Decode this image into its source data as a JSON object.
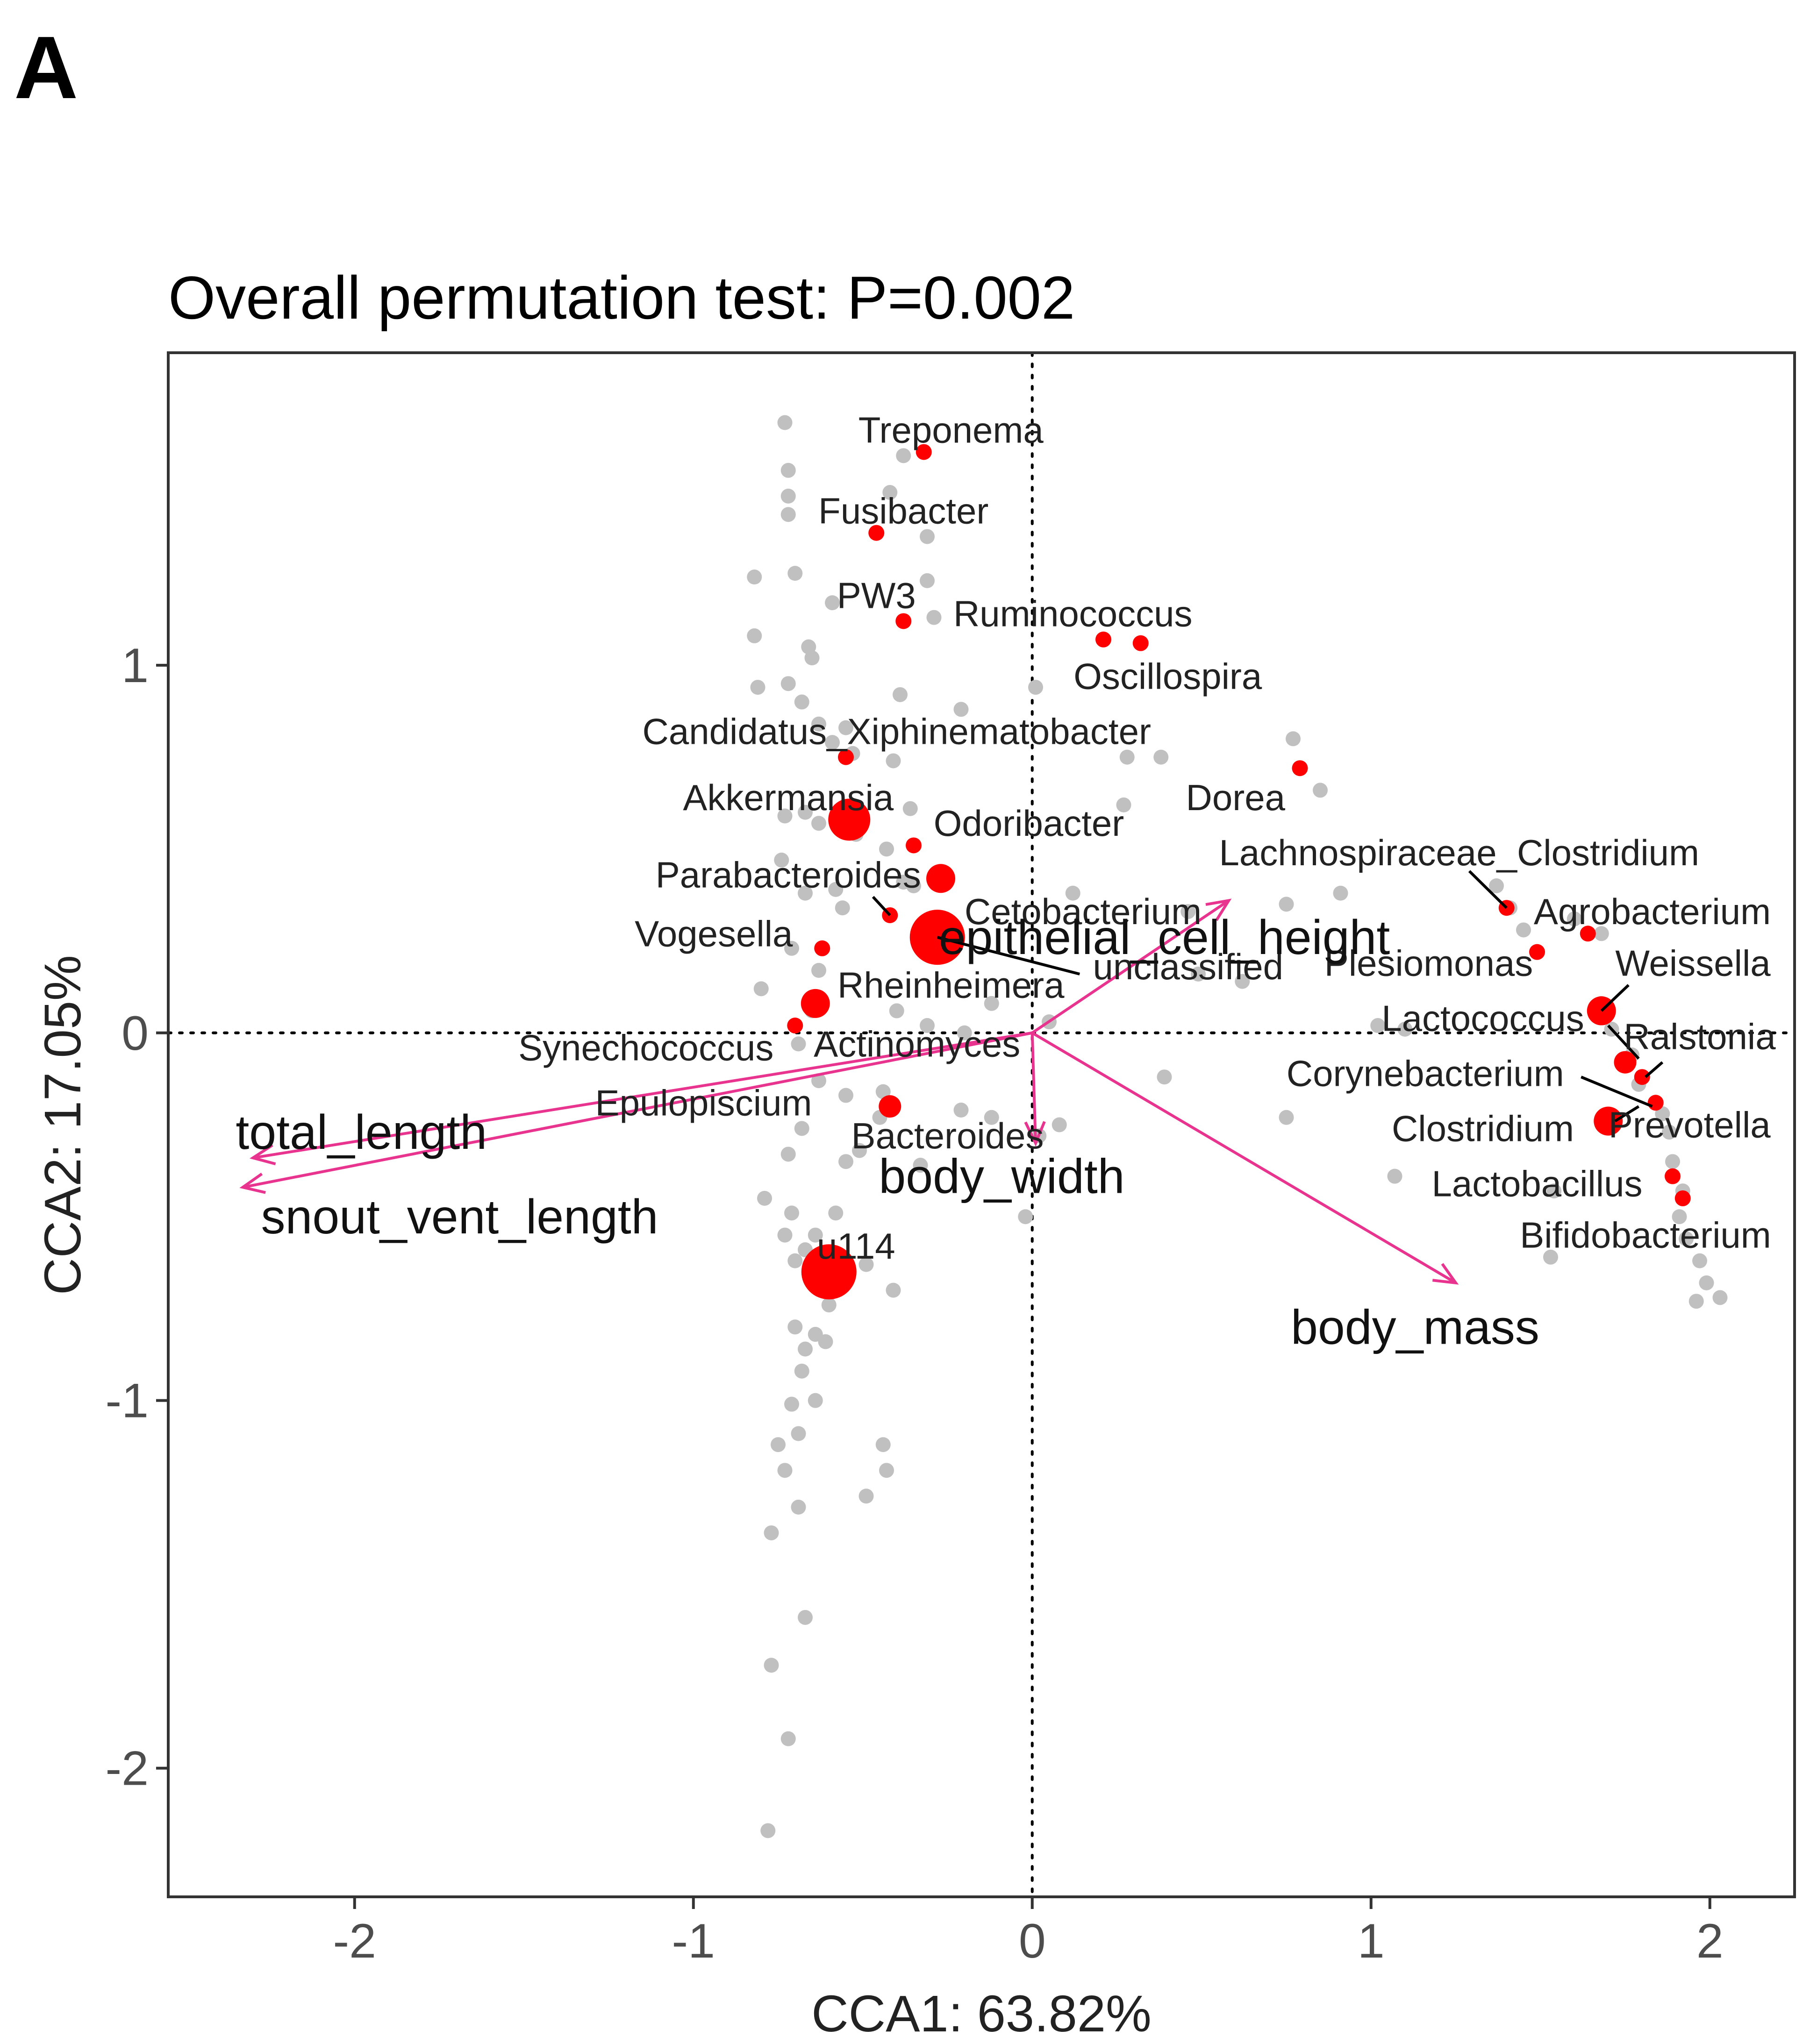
{
  "panel_letter": "A",
  "chart_data": {
    "type": "scatter",
    "title": "Overall permutation test: P=0.002",
    "xlabel": "CCA1: 63.82%",
    "ylabel": "CCA2: 17.05%",
    "xlim": [
      -2.55,
      2.25
    ],
    "ylim": [
      -2.35,
      1.85
    ],
    "xticks": [
      -2,
      -1,
      0,
      1,
      2
    ],
    "yticks": [
      -2,
      -1,
      0,
      1
    ],
    "colors": {
      "background_points": "#c0c0c0",
      "highlight_points": "#ff0000",
      "vectors": "#e8338f",
      "frame": "#333333",
      "reference_lines": "#000000"
    },
    "background_points": [
      [
        -0.73,
        1.66
      ],
      [
        -0.72,
        1.53
      ],
      [
        -0.72,
        1.46
      ],
      [
        -0.72,
        1.41
      ],
      [
        -0.42,
        1.47
      ],
      [
        -0.38,
        1.57
      ],
      [
        -0.31,
        1.35
      ],
      [
        -0.82,
        1.24
      ],
      [
        -0.7,
        1.25
      ],
      [
        -0.31,
        1.23
      ],
      [
        -0.29,
        1.13
      ],
      [
        -0.59,
        1.17
      ],
      [
        -0.82,
        1.08
      ],
      [
        -0.66,
        1.05
      ],
      [
        -0.65,
        1.02
      ],
      [
        -0.81,
        0.94
      ],
      [
        -0.72,
        0.95
      ],
      [
        -0.68,
        0.9
      ],
      [
        -0.39,
        0.92
      ],
      [
        -0.63,
        0.84
      ],
      [
        -0.55,
        0.83
      ],
      [
        -0.21,
        0.88
      ],
      [
        0.01,
        0.94
      ],
      [
        -0.59,
        0.79
      ],
      [
        -0.53,
        0.76
      ],
      [
        -0.41,
        0.74
      ],
      [
        0.28,
        0.75
      ],
      [
        0.38,
        0.75
      ],
      [
        0.77,
        0.8
      ],
      [
        0.85,
        0.66
      ],
      [
        0.27,
        0.62
      ],
      [
        -0.73,
        0.59
      ],
      [
        -0.67,
        0.6
      ],
      [
        -0.63,
        0.57
      ],
      [
        -0.52,
        0.54
      ],
      [
        -0.36,
        0.61
      ],
      [
        -0.43,
        0.5
      ],
      [
        -0.38,
        0.41
      ],
      [
        -0.74,
        0.47
      ],
      [
        -0.58,
        0.39
      ],
      [
        -0.67,
        0.38
      ],
      [
        -0.56,
        0.34
      ],
      [
        -0.35,
        0.4
      ],
      [
        0.12,
        0.38
      ],
      [
        0.46,
        0.33
      ],
      [
        0.75,
        0.35
      ],
      [
        0.91,
        0.38
      ],
      [
        1.37,
        0.4
      ],
      [
        1.41,
        0.34
      ],
      [
        1.45,
        0.28
      ],
      [
        1.6,
        0.31
      ],
      [
        1.68,
        0.27
      ],
      [
        -0.71,
        0.23
      ],
      [
        -0.63,
        0.17
      ],
      [
        -0.8,
        0.12
      ],
      [
        -0.65,
        0.06
      ],
      [
        -0.4,
        0.06
      ],
      [
        -0.31,
        0.02
      ],
      [
        -0.2,
        0.0
      ],
      [
        -0.12,
        0.08
      ],
      [
        0.05,
        0.03
      ],
      [
        0.49,
        0.16
      ],
      [
        0.62,
        0.14
      ],
      [
        1.02,
        0.02
      ],
      [
        1.1,
        0.01
      ],
      [
        1.68,
        0.08
      ],
      [
        1.71,
        0.01
      ],
      [
        1.77,
        -0.06
      ],
      [
        1.79,
        -0.14
      ],
      [
        1.86,
        -0.22
      ],
      [
        1.88,
        -0.27
      ],
      [
        -0.69,
        -0.03
      ],
      [
        -0.63,
        -0.13
      ],
      [
        -0.55,
        -0.17
      ],
      [
        -0.44,
        -0.16
      ],
      [
        -0.45,
        -0.23
      ],
      [
        -0.21,
        -0.21
      ],
      [
        -0.12,
        -0.23
      ],
      [
        -0.68,
        -0.26
      ],
      [
        -0.72,
        -0.33
      ],
      [
        -0.51,
        -0.32
      ],
      [
        -0.55,
        -0.35
      ],
      [
        -0.33,
        -0.36
      ],
      [
        0.02,
        -0.28
      ],
      [
        0.08,
        -0.25
      ],
      [
        0.39,
        -0.12
      ],
      [
        0.75,
        -0.23
      ],
      [
        1.07,
        -0.39
      ],
      [
        1.54,
        -0.43
      ],
      [
        1.89,
        -0.35
      ],
      [
        1.92,
        -0.43
      ],
      [
        1.91,
        -0.5
      ],
      [
        1.93,
        -0.56
      ],
      [
        1.97,
        -0.62
      ],
      [
        1.99,
        -0.68
      ],
      [
        1.96,
        -0.73
      ],
      [
        2.03,
        -0.72
      ],
      [
        1.53,
        -0.61
      ],
      [
        -0.79,
        -0.45
      ],
      [
        -0.71,
        -0.49
      ],
      [
        -0.58,
        -0.49
      ],
      [
        -0.64,
        -0.55
      ],
      [
        -0.73,
        -0.55
      ],
      [
        -0.67,
        -0.59
      ],
      [
        -0.7,
        -0.62
      ],
      [
        -0.49,
        -0.63
      ],
      [
        -0.62,
        -0.68
      ],
      [
        -0.6,
        -0.74
      ],
      [
        -0.41,
        -0.7
      ],
      [
        -0.02,
        -0.5
      ],
      [
        -0.7,
        -0.8
      ],
      [
        -0.67,
        -0.86
      ],
      [
        -0.64,
        -0.82
      ],
      [
        -0.61,
        -0.84
      ],
      [
        -0.68,
        -0.92
      ],
      [
        -0.71,
        -1.01
      ],
      [
        -0.64,
        -1.0
      ],
      [
        -0.69,
        -1.09
      ],
      [
        -0.75,
        -1.12
      ],
      [
        -0.44,
        -1.12
      ],
      [
        -0.43,
        -1.19
      ],
      [
        -0.49,
        -1.26
      ],
      [
        -0.73,
        -1.19
      ],
      [
        -0.69,
        -1.29
      ],
      [
        -0.77,
        -1.36
      ],
      [
        -0.67,
        -1.59
      ],
      [
        -0.77,
        -1.72
      ],
      [
        -0.72,
        -1.92
      ],
      [
        -0.78,
        -2.17
      ]
    ],
    "highlight_points": [
      {
        "label": "Treponema",
        "x": -0.32,
        "y": 1.58,
        "size": 1
      },
      {
        "label": "Fusibacter",
        "x": -0.46,
        "y": 1.36,
        "size": 1
      },
      {
        "label": "PW3",
        "x": -0.38,
        "y": 1.12,
        "size": 1
      },
      {
        "label": "Ruminococcus",
        "x": 0.21,
        "y": 1.07,
        "size": 1
      },
      {
        "label": "Oscillospira",
        "x": 0.32,
        "y": 1.06,
        "size": 1
      },
      {
        "label": "Candidatus_Xiphinematobacter",
        "x": -0.55,
        "y": 0.75,
        "size": 1
      },
      {
        "label": "Dorea",
        "x": 0.79,
        "y": 0.72,
        "size": 1
      },
      {
        "label": "Akkermansia",
        "x": -0.54,
        "y": 0.58,
        "size": 3
      },
      {
        "label": "Odoribacter",
        "x": -0.35,
        "y": 0.51,
        "size": 1
      },
      {
        "label": "Parabacteroides",
        "x": -0.42,
        "y": 0.32,
        "size": 1
      },
      {
        "label": "Cetobacterium",
        "x": -0.27,
        "y": 0.42,
        "size": 2
      },
      {
        "label": "epithelial_cell_height",
        "x": -0.28,
        "y": 0.26,
        "size": 4
      },
      {
        "label": "Vogesella",
        "x": -0.62,
        "y": 0.23,
        "size": 1
      },
      {
        "label": "Rheinheimera",
        "x": -0.64,
        "y": 0.08,
        "size": 2
      },
      {
        "label": "Synechococcus",
        "x": -0.7,
        "y": 0.02,
        "size": 1
      },
      {
        "label": "Bacteroides",
        "x": -0.42,
        "y": -0.2,
        "size": 1.5
      },
      {
        "label": "u114",
        "x": -0.6,
        "y": -0.65,
        "size": 4
      },
      {
        "label": "Lachnospiraceae_Clostridium",
        "x": 1.4,
        "y": 0.34,
        "size": 1
      },
      {
        "label": "Agrobacterium",
        "x": 1.49,
        "y": 0.22,
        "size": 1
      },
      {
        "label": "Weissella",
        "x": 1.68,
        "y": 0.06,
        "size": 2
      },
      {
        "label": "Ralstonia",
        "x": 1.75,
        "y": -0.08,
        "size": 1.5
      },
      {
        "label": "Corynebacterium",
        "x": 1.8,
        "y": -0.12,
        "size": 1
      },
      {
        "label": "Prevotella",
        "x": 1.84,
        "y": -0.19,
        "size": 1
      },
      {
        "label": "Clostridium",
        "x": 1.7,
        "y": -0.24,
        "size": 2
      },
      {
        "label": "Lactobacillus",
        "x": 1.89,
        "y": -0.39,
        "size": 1
      },
      {
        "label": "Bifidobacterium",
        "x": 1.92,
        "y": -0.45,
        "size": 1
      },
      {
        "label": "",
        "x": 1.64,
        "y": 0.27,
        "size": 1
      }
    ],
    "text_labels": [
      {
        "text": "Treponema",
        "x": -0.24,
        "y": 1.64
      },
      {
        "text": "Fusibacter",
        "x": -0.38,
        "y": 1.42
      },
      {
        "text": "PW3",
        "x": -0.46,
        "y": 1.19
      },
      {
        "text": "Ruminococcus",
        "x": 0.12,
        "y": 1.14
      },
      {
        "text": "Oscillospira",
        "x": 0.4,
        "y": 0.97
      },
      {
        "text": "Candidatus_Xiphinematobacter",
        "x": -0.4,
        "y": 0.82
      },
      {
        "text": "Dorea",
        "x": 0.6,
        "y": 0.64
      },
      {
        "text": "Akkermansia",
        "x": -0.72,
        "y": 0.64
      },
      {
        "text": "Odoribacter",
        "x": -0.01,
        "y": 0.57
      },
      {
        "text": "Parabacteroides",
        "x": -0.72,
        "y": 0.43
      },
      {
        "text": "Cetobacterium",
        "x": 0.15,
        "y": 0.33
      },
      {
        "text": "Lachnospiraceae_Clostridium",
        "x": 1.26,
        "y": 0.49
      },
      {
        "text": "Agrobacterium",
        "x": 1.83,
        "y": 0.33
      },
      {
        "text": "Vogesella",
        "x": -0.94,
        "y": 0.27
      },
      {
        "text": "unclassified",
        "x": 0.46,
        "y": 0.18
      },
      {
        "text": "Plesiomonas",
        "x": 1.17,
        "y": 0.19
      },
      {
        "text": "Weissella",
        "x": 1.95,
        "y": 0.19
      },
      {
        "text": "Rheinheimera",
        "x": -0.24,
        "y": 0.13
      },
      {
        "text": "Lactococcus",
        "x": 1.33,
        "y": 0.04
      },
      {
        "text": "Ralstonia",
        "x": 1.97,
        "y": -0.01
      },
      {
        "text": "Synechococcus",
        "x": -1.14,
        "y": -0.04
      },
      {
        "text": "Actinomyces",
        "x": -0.34,
        "y": -0.03
      },
      {
        "text": "Corynebacterium",
        "x": 1.16,
        "y": -0.11
      },
      {
        "text": "Epulopiscium",
        "x": -0.97,
        "y": -0.19
      },
      {
        "text": "Bacteroides",
        "x": -0.25,
        "y": -0.28
      },
      {
        "text": "Clostridium",
        "x": 1.33,
        "y": -0.26
      },
      {
        "text": "Prevotella",
        "x": 1.94,
        "y": -0.25
      },
      {
        "text": "Lactobacillus",
        "x": 1.49,
        "y": -0.41
      },
      {
        "text": "Bifidobacterium",
        "x": 1.81,
        "y": -0.55
      },
      {
        "text": "u114",
        "x": -0.52,
        "y": -0.58
      }
    ],
    "leader_lines": [
      [
        -0.28,
        0.26,
        0.14,
        0.16
      ],
      [
        -0.42,
        0.32,
        -0.47,
        0.37
      ],
      [
        1.4,
        0.34,
        1.29,
        0.44
      ],
      [
        1.68,
        0.06,
        1.76,
        0.13
      ],
      [
        1.7,
        0.02,
        1.79,
        -0.07
      ],
      [
        1.81,
        -0.12,
        1.86,
        -0.08
      ],
      [
        1.62,
        -0.12,
        1.83,
        -0.2
      ],
      [
        1.72,
        -0.24,
        1.79,
        -0.2
      ]
    ],
    "vectors": [
      {
        "label": "total_length",
        "x": -2.3,
        "y": -0.34,
        "label_x": -1.98,
        "label_y": -0.27
      },
      {
        "label": "snout_vent_length",
        "x": -2.33,
        "y": -0.42,
        "label_x": -1.69,
        "label_y": -0.5
      },
      {
        "label": "epithelial_cell_height",
        "x": 0.58,
        "y": 0.36,
        "label_x": 0.39,
        "label_y": 0.26
      },
      {
        "label": "body_width",
        "x": 0.01,
        "y": -0.3,
        "label_x": -0.09,
        "label_y": -0.39
      },
      {
        "label": "body_mass",
        "x": 1.25,
        "y": -0.68,
        "label_x": 1.13,
        "label_y": -0.8
      }
    ]
  }
}
